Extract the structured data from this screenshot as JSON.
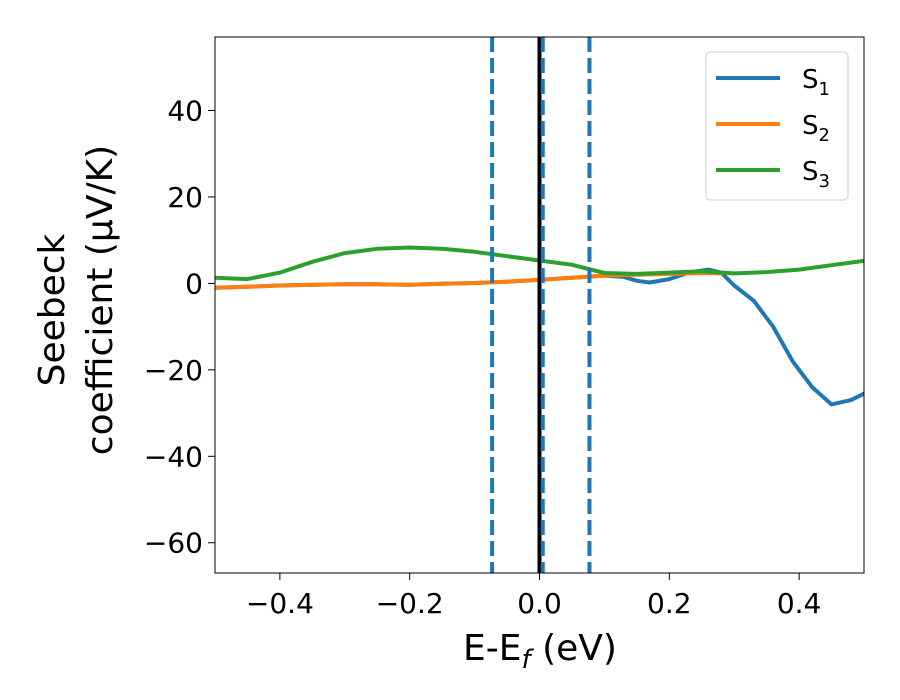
{
  "chart_data": {
    "type": "line",
    "xlabel_main": "E-E",
    "xlabel_sub": "f",
    "xlabel_unit": " (eV)",
    "ylabel_line1": "Seebeck",
    "ylabel_line2": "coefficient  (μV/K)",
    "xlim": [
      -0.5,
      0.5
    ],
    "ylim": [
      -67,
      57
    ],
    "xticks": [
      -0.4,
      -0.2,
      0.0,
      0.2,
      0.4
    ],
    "xtick_labels": [
      "−0.4",
      "−0.2",
      "0.0",
      "0.2",
      "0.4"
    ],
    "yticks": [
      40,
      20,
      0,
      -20,
      -40,
      -60
    ],
    "ytick_labels": [
      "40",
      "20",
      "0",
      "−20",
      "−40",
      "−60"
    ],
    "legend_position": "top-right",
    "vlines": [
      {
        "x": -0.073,
        "style": "dashed",
        "color": "#1f77b4"
      },
      {
        "x": 0.0,
        "style": "solid",
        "color": "#000000"
      },
      {
        "x": 0.005,
        "style": "dashed",
        "color": "#1f77b4"
      },
      {
        "x": 0.077,
        "style": "dashed",
        "color": "#1f77b4"
      }
    ],
    "series": [
      {
        "name": "S",
        "sub": "1",
        "color": "#1f77b4",
        "x": [
          -0.5,
          -0.45,
          -0.4,
          -0.35,
          -0.3,
          -0.25,
          -0.2,
          -0.15,
          -0.1,
          -0.05,
          0.0,
          0.05,
          0.1,
          0.13,
          0.15,
          0.17,
          0.2,
          0.23,
          0.26,
          0.28,
          0.3,
          0.33,
          0.36,
          0.39,
          0.42,
          0.45,
          0.48,
          0.5
        ],
        "y": [
          -1,
          -0.8,
          -0.5,
          -0.3,
          -0.2,
          -0.2,
          -0.3,
          -0.1,
          0.1,
          0.4,
          0.8,
          1.3,
          1.8,
          1.5,
          0.6,
          0.2,
          1.0,
          2.5,
          3.2,
          2.5,
          -0.5,
          -4,
          -10,
          -18,
          -24,
          -28,
          -27,
          -25.5
        ]
      },
      {
        "name": "S",
        "sub": "2",
        "color": "#ff7f0e",
        "x": [
          -0.5,
          -0.45,
          -0.4,
          -0.35,
          -0.3,
          -0.25,
          -0.2,
          -0.15,
          -0.1,
          -0.05,
          0.0,
          0.05,
          0.1,
          0.15,
          0.2,
          0.25,
          0.28
        ],
        "y": [
          -1,
          -0.8,
          -0.5,
          -0.3,
          -0.2,
          -0.2,
          -0.3,
          -0.1,
          0.1,
          0.4,
          0.8,
          1.3,
          1.8,
          2.0,
          2.2,
          2.4,
          2.3
        ]
      },
      {
        "name": "S",
        "sub": "3",
        "color": "#2ca02c",
        "x": [
          -0.5,
          -0.45,
          -0.4,
          -0.35,
          -0.3,
          -0.25,
          -0.2,
          -0.15,
          -0.1,
          -0.05,
          0.0,
          0.05,
          0.1,
          0.15,
          0.2,
          0.25,
          0.3,
          0.35,
          0.4,
          0.45,
          0.5
        ],
        "y": [
          1.3,
          1.0,
          2.5,
          5.0,
          7.0,
          8.0,
          8.3,
          8.0,
          7.3,
          6.3,
          5.3,
          4.3,
          2.4,
          2.2,
          2.5,
          2.8,
          2.3,
          2.6,
          3.2,
          4.2,
          5.2
        ]
      }
    ]
  }
}
